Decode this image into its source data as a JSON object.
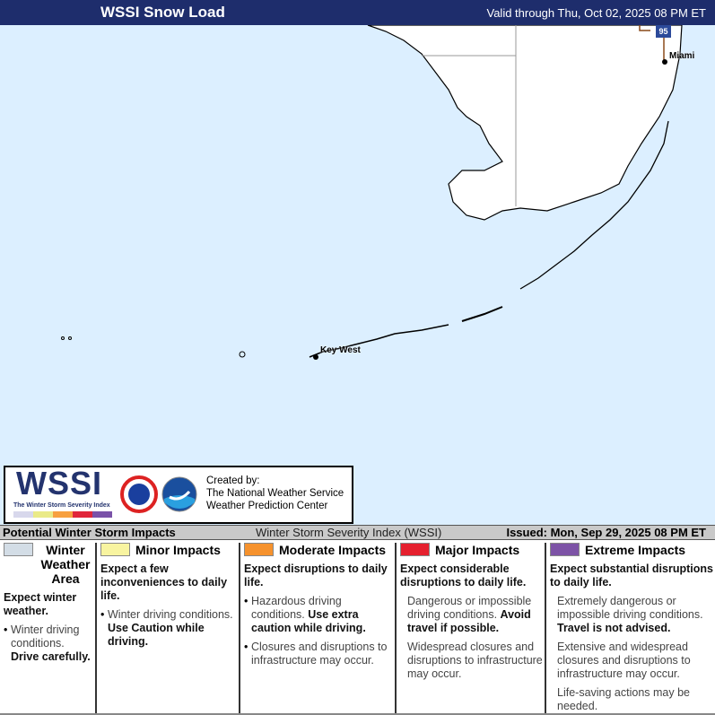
{
  "header": {
    "title": "WSSI Snow Load",
    "valid": "Valid through Thu, Oct 02, 2025 08 PM ET"
  },
  "map": {
    "cities": [
      "Miami",
      "Key West"
    ],
    "highway_shield": "95",
    "colors": {
      "water": "#dcefff",
      "land": "#ffffff"
    }
  },
  "logo": {
    "wordmark": "WSSI",
    "subtitle": "The Winter Storm Severity Index",
    "credit": [
      "Created by:",
      "The National Weather Service",
      "Weather Prediction Center"
    ],
    "bar_colors": [
      "#d8d8ec",
      "#eaea88",
      "#f7a040",
      "#e0263a",
      "#7a52a8"
    ]
  },
  "legend_header": {
    "left": "Potential Winter Storm Impacts",
    "center": "Winter Storm Severity Index (WSSI)",
    "right": "Issued: Mon, Sep 29, 2025 08 PM ET"
  },
  "categories": [
    {
      "title": "Winter Weather Area",
      "color": "#d3dde6",
      "expect": "Expect winter weather.",
      "bullets": [
        {
          "text": "Winter driving conditions. ",
          "bold": "Drive carefully."
        }
      ]
    },
    {
      "title": "Minor Impacts",
      "color": "#f8f4a0",
      "expect": "Expect a few inconveniences to daily life.",
      "bullets": [
        {
          "text": "Winter driving conditions. ",
          "bold": "Use Caution while driving."
        }
      ]
    },
    {
      "title": "Moderate Impacts",
      "color": "#f6922d",
      "expect": "Expect disruptions to daily life.",
      "bullets": [
        {
          "text": "Hazardous driving conditions. ",
          "bold": "Use extra caution while driving."
        },
        {
          "text": "Closures and disruptions to infrastructure may occur.",
          "bold": ""
        }
      ]
    },
    {
      "title": "Major Impacts",
      "color": "#e5202e",
      "expect": "Expect considerable disruptions to daily life.",
      "bullets": [
        {
          "text": "Dangerous or impossible driving conditions. ",
          "bold": "Avoid travel if possible."
        },
        {
          "text": "Widespread closures and disruptions to infrastructure may occur.",
          "bold": ""
        }
      ]
    },
    {
      "title": "Extreme Impacts",
      "color": "#7d53a6",
      "expect": "Expect substantial disruptions to daily life.",
      "bullets": [
        {
          "text": "Extremely dangerous or impossible driving conditions. ",
          "bold": "Travel is not advised."
        },
        {
          "text": "Extensive and widespread closures and disruptions to infrastructure may occur.",
          "bold": ""
        },
        {
          "text": "Life-saving actions may be needed.",
          "bold": ""
        }
      ]
    }
  ]
}
